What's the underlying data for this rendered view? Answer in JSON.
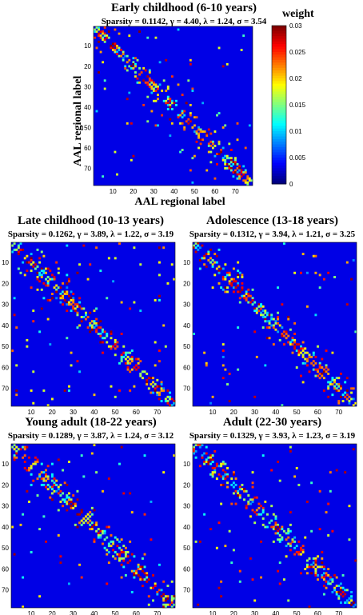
{
  "chart_data": [
    {
      "type": "heatmap",
      "title": "Early childhood (6-10 years)",
      "subtitle": "Sparsity = 0.1142, γ = 4.40, λ = 1.24, σ = 3.54",
      "xlabel": "AAL regional label",
      "ylabel": "AAL regional label",
      "ticks": [
        10,
        20,
        30,
        40,
        50,
        60,
        70
      ],
      "n": 78,
      "colorbar": {
        "title": "weight",
        "ticks": [
          "0.03",
          "0.025",
          "0.02",
          "0.015",
          "0.01",
          "0.005",
          "0"
        ],
        "range": [
          0,
          0.03
        ]
      }
    },
    {
      "type": "heatmap",
      "title": "Late childhood (10-13 years)",
      "subtitle": "Sparsity = 0.1262, γ = 3.89, λ = 1.22, σ = 3.19",
      "ticks": [
        10,
        20,
        30,
        40,
        50,
        60,
        70
      ],
      "n": 78
    },
    {
      "type": "heatmap",
      "title": "Adolescence (13-18 years)",
      "subtitle": "Sparsity = 0.1312, γ = 3.94, λ = 1.21, σ = 3.25",
      "ticks": [
        10,
        20,
        30,
        40,
        50,
        60,
        70
      ],
      "n": 78
    },
    {
      "type": "heatmap",
      "title": "Young adult (18-22 years)",
      "subtitle": "Sparsity = 0.1289, γ = 3.87, λ = 1.24, σ = 3.12",
      "ticks": [
        10,
        20,
        30,
        40,
        50,
        60,
        70
      ],
      "n": 78
    },
    {
      "type": "heatmap",
      "title": "Adult (22-30 years)",
      "subtitle": "Sparsity = 0.1329, γ = 3.93, λ = 1.23, σ = 3.19",
      "ticks": [
        10,
        20,
        30,
        40,
        50,
        60,
        70
      ],
      "n": 78
    }
  ]
}
